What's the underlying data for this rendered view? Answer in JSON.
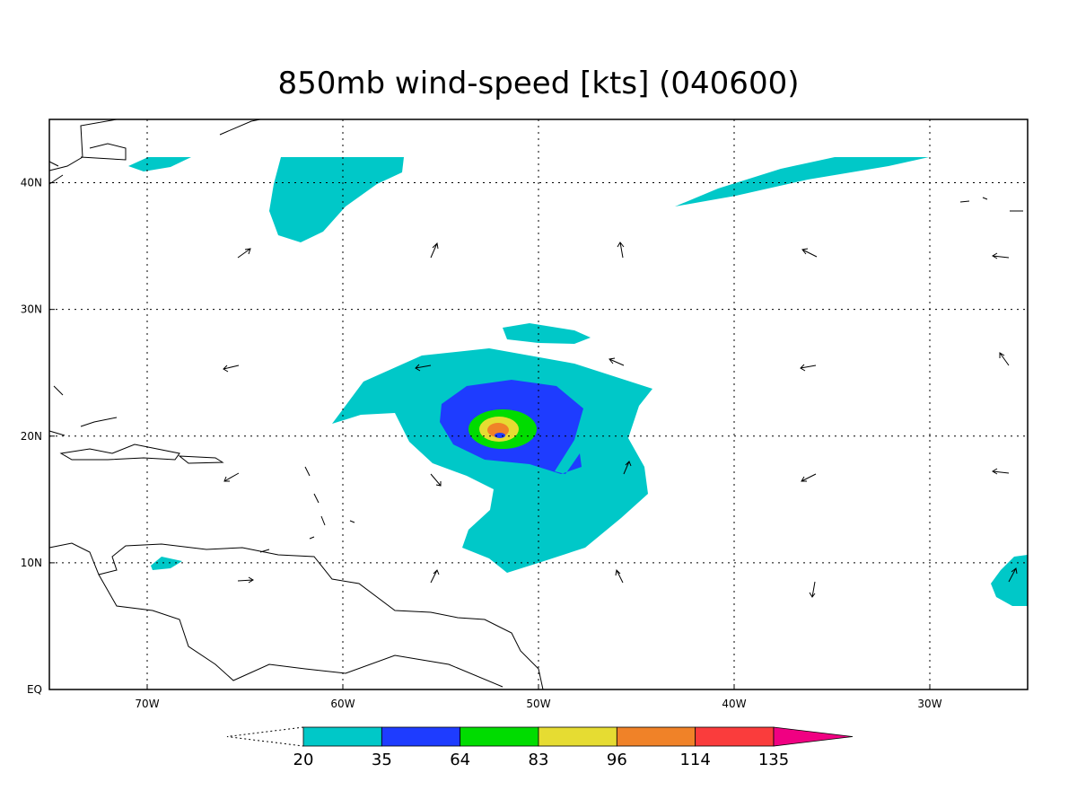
{
  "map": {
    "title": "850mb wind-speed [kts] (040600)",
    "lon_range": [
      -75,
      -25
    ],
    "lat_range": [
      0,
      45
    ],
    "lon_ticks": [
      {
        "value": -70,
        "label": "70W"
      },
      {
        "value": -60,
        "label": "60W"
      },
      {
        "value": -50,
        "label": "50W"
      },
      {
        "value": -40,
        "label": "40W"
      },
      {
        "value": -30,
        "label": "30W"
      }
    ],
    "lat_ticks": [
      {
        "value": 0,
        "label": "EQ"
      },
      {
        "value": 10,
        "label": "10N"
      },
      {
        "value": 20,
        "label": "20N"
      },
      {
        "value": 30,
        "label": "30N"
      },
      {
        "value": 40,
        "label": "40N"
      }
    ],
    "grid": true,
    "colorbar": {
      "levels": [
        20,
        35,
        64,
        83,
        96,
        114,
        135
      ],
      "colors": [
        "#00c8c8",
        "#1e3cff",
        "#00dc00",
        "#e6dc32",
        "#f08228",
        "#fa3c3c",
        "#f00082"
      ]
    }
  }
}
